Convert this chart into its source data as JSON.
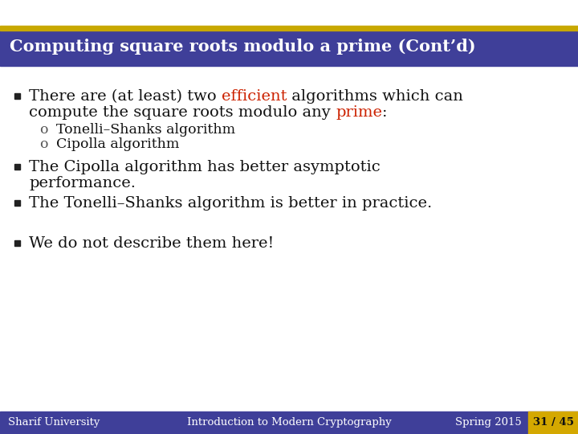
{
  "title": "Computing square roots modulo a prime (Cont’d)",
  "title_bg": "#3f3f99",
  "title_fg": "#ffffff",
  "title_top_border": "#c8a800",
  "body_bg": "#ffffff",
  "footer_bg": "#3f3f99",
  "footer_fg": "#ffffff",
  "footer_left": "Sharif University",
  "footer_center": "Introduction to Modern Cryptography",
  "footer_right": "Spring 2015",
  "footer_page": "31 / 45",
  "footer_page_bg": "#d4a800",
  "text_color": "#111111",
  "red_color": "#cc2200",
  "sub1": "Tonelli–Shanks algorithm",
  "sub2": "Cipolla algorithm",
  "bullet2_line1": "The Cipolla algorithm has better asymptotic",
  "bullet2_line2": "performance.",
  "bullet3": "The Tonelli–Shanks algorithm is better in practice.",
  "bullet4": "We do not describe them here!",
  "font_family": "DejaVu Serif",
  "title_fontsize": 15,
  "body_fontsize": 14,
  "sub_fontsize": 12.5,
  "footer_fontsize": 9.5
}
